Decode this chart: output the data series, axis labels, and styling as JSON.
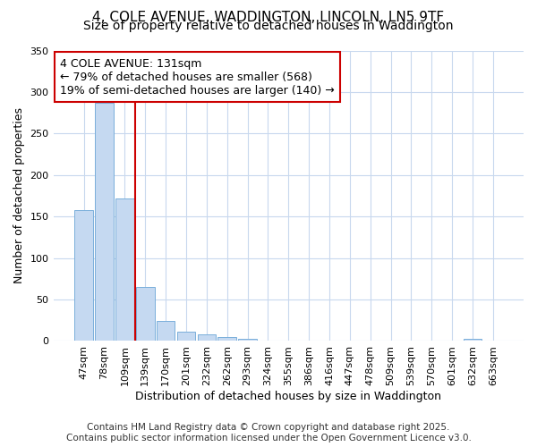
{
  "title1": "4, COLE AVENUE, WADDINGTON, LINCOLN, LN5 9TF",
  "title2": "Size of property relative to detached houses in Waddington",
  "xlabel": "Distribution of detached houses by size in Waddington",
  "ylabel": "Number of detached properties",
  "categories": [
    "47sqm",
    "78sqm",
    "109sqm",
    "139sqm",
    "170sqm",
    "201sqm",
    "232sqm",
    "262sqm",
    "293sqm",
    "324sqm",
    "355sqm",
    "386sqm",
    "416sqm",
    "447sqm",
    "478sqm",
    "509sqm",
    "539sqm",
    "570sqm",
    "601sqm",
    "632sqm",
    "663sqm"
  ],
  "values": [
    158,
    287,
    172,
    65,
    24,
    11,
    8,
    5,
    3,
    0,
    0,
    0,
    0,
    0,
    0,
    0,
    0,
    0,
    0,
    3,
    0
  ],
  "bar_color": "#c5d9f1",
  "bar_edge_color": "#7aafdb",
  "vline_x": 2.5,
  "vline_color": "#cc0000",
  "annotation_text": "4 COLE AVENUE: 131sqm\n← 79% of detached houses are smaller (568)\n19% of semi-detached houses are larger (140) →",
  "annotation_box_color": "#cc0000",
  "ylim": [
    0,
    350
  ],
  "yticks": [
    0,
    50,
    100,
    150,
    200,
    250,
    300,
    350
  ],
  "fig_bg": "#ffffff",
  "plot_bg": "#ffffff",
  "grid_color": "#c8d8ee",
  "footer": "Contains HM Land Registry data © Crown copyright and database right 2025.\nContains public sector information licensed under the Open Government Licence v3.0.",
  "title1_fontsize": 11,
  "title2_fontsize": 10,
  "xlabel_fontsize": 9,
  "ylabel_fontsize": 9,
  "tick_fontsize": 8,
  "footer_fontsize": 7.5,
  "ann_fontsize": 9
}
